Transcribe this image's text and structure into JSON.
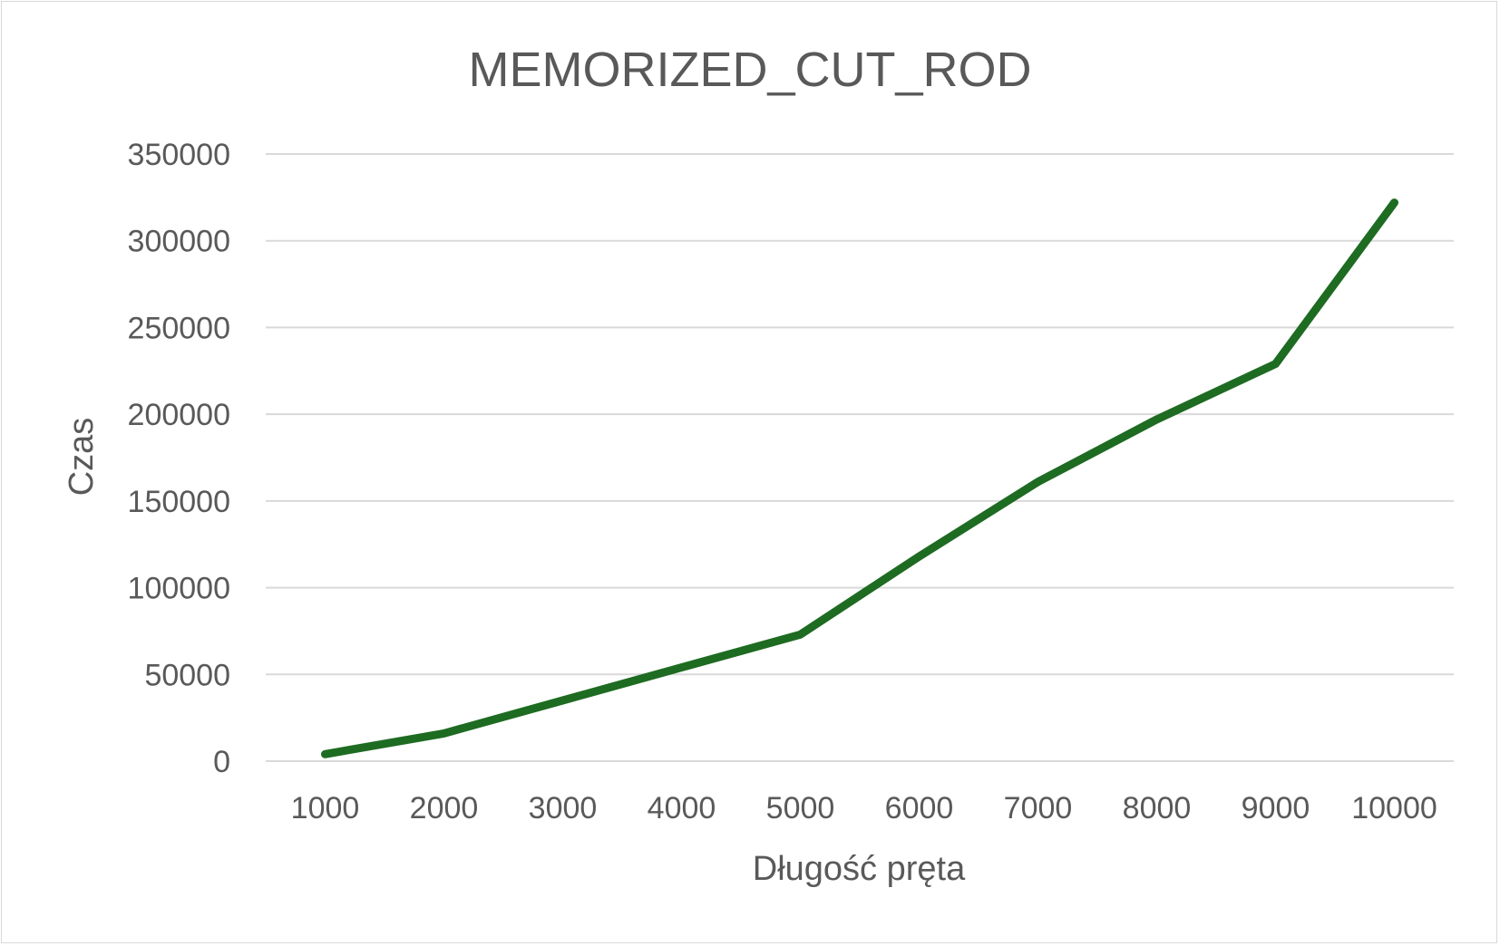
{
  "chart_data": {
    "type": "line",
    "title": "MEMORIZED_CUT_ROD",
    "xlabel": "Długość pręta",
    "ylabel": "Czas",
    "categories": [
      "1000",
      "2000",
      "3000",
      "4000",
      "5000",
      "6000",
      "7000",
      "8000",
      "9000",
      "10000"
    ],
    "series": [
      {
        "values": [
          4000,
          16000,
          35000,
          54000,
          73000,
          118000,
          161000,
          197000,
          229000,
          322000
        ],
        "color": "#1e6b22"
      }
    ],
    "ylim": [
      0,
      350000
    ],
    "yticks": [
      "0",
      "50000",
      "100000",
      "150000",
      "200000",
      "250000",
      "300000",
      "350000"
    ],
    "grid": true,
    "legend": "none"
  },
  "colors": {
    "gridline": "#d9d9d9",
    "text": "#595959",
    "border": "#d9d9d9"
  }
}
